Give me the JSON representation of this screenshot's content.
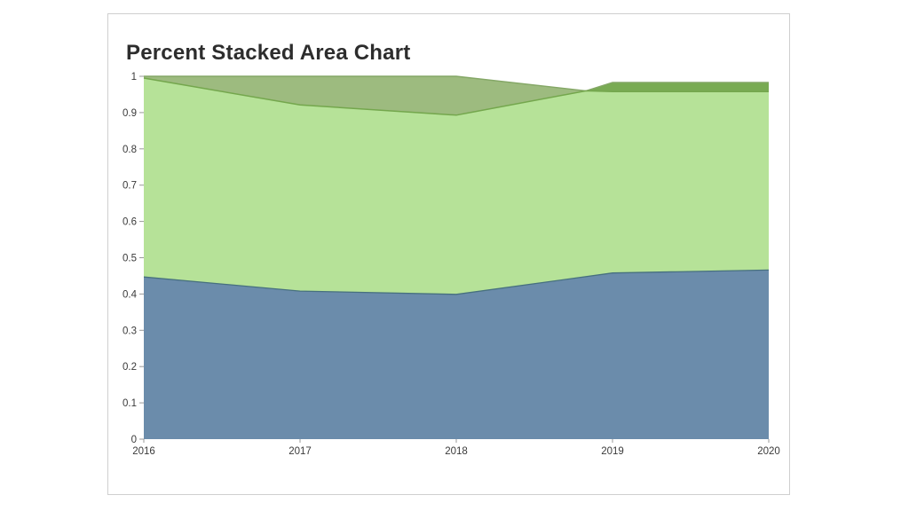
{
  "card": {
    "background": "#ffffff",
    "border_color": "#cfcfcf"
  },
  "chart_data": {
    "type": "area",
    "variant": "percent-stacked",
    "title": "Percent Stacked Area Chart",
    "x": [
      2016,
      2017,
      2018,
      2019,
      2020
    ],
    "x_ticks": [
      "2016",
      "2017",
      "2018",
      "2019",
      "2020"
    ],
    "y_ticks": [
      "0",
      "0.1",
      "0.2",
      "0.3",
      "0.4",
      "0.5",
      "0.6",
      "0.7",
      "0.8",
      "0.9",
      "1"
    ],
    "ylim": [
      0,
      1
    ],
    "xlabel": "",
    "ylabel": "",
    "legend": "none",
    "grid": "off",
    "series": [
      {
        "name": "bottom-blue",
        "color": "#6b8cab",
        "values": [
          0.45,
          0.41,
          0.4,
          0.46,
          0.47
        ]
      },
      {
        "name": "middle-green",
        "color": "#b6e298",
        "values": [
          0.55,
          0.51,
          0.49,
          0.5,
          0.49
        ]
      },
      {
        "name": "top-darkgreen",
        "color": "#9dbb7f",
        "values": [
          0.005,
          0.08,
          0.11,
          0.025,
          0.025
        ]
      }
    ],
    "boundaries": {
      "blue_top": {
        "x": [
          2016,
          2017,
          2018,
          2019,
          2020
        ],
        "v": [
          0.447,
          0.408,
          0.399,
          0.458,
          0.466
        ]
      },
      "green_top": {
        "x": [
          2016,
          2017,
          2018,
          2018.83,
          2019,
          2020
        ],
        "v": [
          0.995,
          0.921,
          0.893,
          0.96,
          0.958,
          0.958
        ]
      },
      "total_top": {
        "x": [
          2016,
          2017,
          2018,
          2018.83,
          2019,
          2020
        ],
        "v": [
          1.0,
          1.0,
          1.0,
          0.96,
          0.983,
          0.983
        ]
      }
    },
    "colors": {
      "blue_fill": "#6b8cab",
      "light_green_fill": "#b6e298",
      "olive_wedge_fill": "#9dbb7f",
      "dark_band_fill": "#79ab53",
      "blue_edge": "#47707f",
      "green_edge": "#74a74d",
      "total_edge": "#84a766",
      "tick_color": "#999999",
      "tick_label_color": "#3a3a3a",
      "title_color": "#2d2d2d"
    }
  }
}
